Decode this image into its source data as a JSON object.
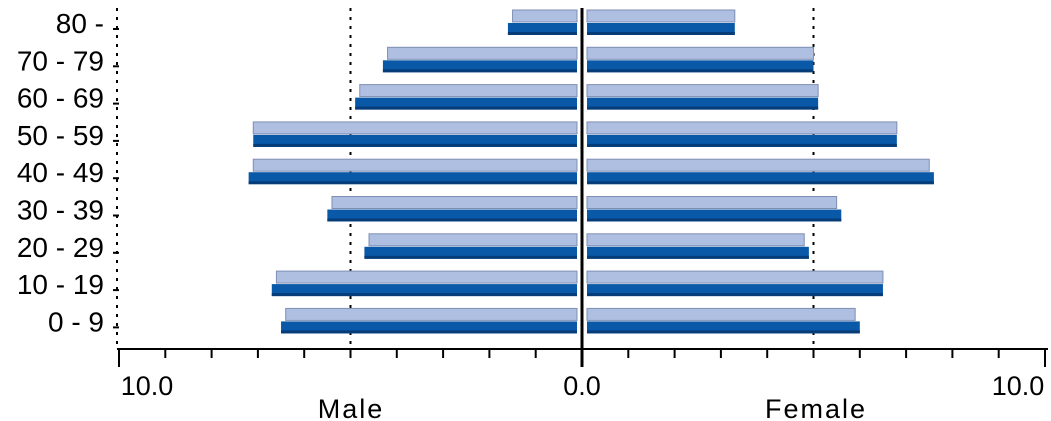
{
  "chart_data": {
    "type": "bar",
    "orientation": "horizontal",
    "layout": "population-pyramid",
    "categories": [
      "0 - 9",
      "10 - 19",
      "20 - 29",
      "30 - 39",
      "40 - 49",
      "50 - 59",
      "60 - 69",
      "70 - 79",
      "80 -"
    ],
    "series": [
      {
        "side": "left",
        "values_front": [
          6.5,
          6.7,
          4.7,
          5.5,
          7.2,
          7.1,
          4.9,
          4.3,
          1.6
        ],
        "values_back": [
          6.4,
          6.6,
          4.6,
          5.4,
          7.1,
          7.1,
          4.8,
          4.2,
          1.5
        ]
      },
      {
        "side": "right",
        "values_front": [
          6.0,
          6.5,
          4.9,
          5.6,
          7.6,
          6.8,
          5.1,
          5.0,
          3.3
        ],
        "values_back": [
          5.9,
          6.5,
          4.8,
          5.5,
          7.5,
          6.8,
          5.1,
          5.0,
          3.3
        ]
      }
    ],
    "x_ticks": [
      "10.0",
      "0.0",
      "10.0"
    ],
    "xlim": [
      -10,
      10
    ],
    "left_label": "Male",
    "right_label": "Female",
    "gridlines_at": [
      -5,
      5
    ],
    "colors": {
      "front": "#0a58a8",
      "front_dark": "#063c78",
      "back": "#aebfe2",
      "back_edge": "#7f8fb4",
      "axis": "#000000",
      "grid": "#000000"
    }
  }
}
